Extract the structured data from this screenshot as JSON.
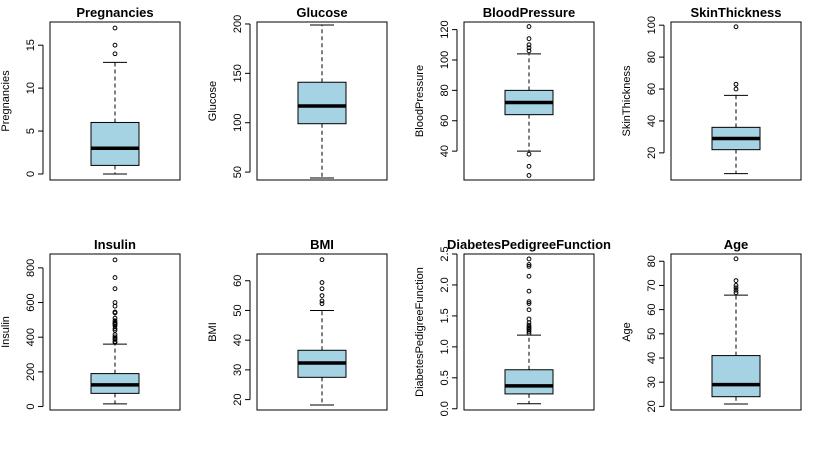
{
  "chart_data": [
    {
      "type": "box",
      "title": "Pregnancies",
      "xlabel": "",
      "ylabel": "Pregnancies",
      "ylim": [
        -0.7,
        17.7
      ],
      "yticks": [
        0,
        5,
        10,
        15
      ],
      "tick_labels": [
        "0",
        "5",
        "10",
        "15"
      ],
      "min": 0,
      "q1": 1,
      "median": 3,
      "q3": 6,
      "max": 13,
      "outliers": [
        14,
        15,
        17
      ]
    },
    {
      "type": "box",
      "title": "Glucose",
      "xlabel": "",
      "ylabel": "Glucose",
      "ylim": [
        42,
        202
      ],
      "yticks": [
        50,
        100,
        150,
        200
      ],
      "tick_labels": [
        "50",
        "100",
        "150",
        "200"
      ],
      "min": 44,
      "q1": 99,
      "median": 117,
      "q3": 141,
      "max": 199,
      "outliers": []
    },
    {
      "type": "box",
      "title": "BloodPressure",
      "xlabel": "",
      "ylabel": "BloodPressure",
      "ylim": [
        21,
        125
      ],
      "yticks": [
        40,
        60,
        80,
        100,
        120
      ],
      "tick_labels": [
        "40",
        "60",
        "80",
        "100",
        "120"
      ],
      "min": 40,
      "q1": 64,
      "median": 72,
      "q3": 80,
      "max": 104,
      "outliers": [
        24,
        30,
        38,
        106,
        108,
        110,
        114,
        122
      ]
    },
    {
      "type": "box",
      "title": "SkinThickness",
      "xlabel": "",
      "ylabel": "SkinThickness",
      "ylim": [
        3,
        102
      ],
      "yticks": [
        20,
        40,
        60,
        80,
        100
      ],
      "tick_labels": [
        "20",
        "40",
        "60",
        "80",
        "100"
      ],
      "min": 7,
      "q1": 22,
      "median": 29,
      "q3": 36,
      "max": 56,
      "outliers": [
        60,
        63,
        99
      ]
    },
    {
      "type": "box",
      "title": "Insulin",
      "xlabel": "",
      "ylabel": "Insulin",
      "ylim": [
        -20,
        880
      ],
      "yticks": [
        0,
        200,
        400,
        600,
        800
      ],
      "tick_labels": [
        "0",
        "200",
        "400",
        "600",
        "800"
      ],
      "min": 15,
      "q1": 76,
      "median": 125,
      "q3": 190,
      "max": 360,
      "outliers": [
        370,
        375,
        387,
        392,
        402,
        415,
        440,
        450,
        465,
        474,
        478,
        480,
        485,
        495,
        510,
        540,
        543,
        545,
        579,
        600,
        680,
        744,
        846
      ]
    },
    {
      "type": "box",
      "title": "BMI",
      "xlabel": "",
      "ylabel": "BMI",
      "ylim": [
        16.5,
        69
      ],
      "yticks": [
        20,
        30,
        40,
        50,
        60
      ],
      "tick_labels": [
        "20",
        "30",
        "40",
        "50",
        "60"
      ],
      "min": 18.2,
      "q1": 27.5,
      "median": 32.3,
      "q3": 36.6,
      "max": 50,
      "outliers": [
        52.3,
        53.2,
        55,
        57.3,
        59.4,
        67.1
      ]
    },
    {
      "type": "box",
      "title": "DiabetesPedigreeFunction",
      "xlabel": "",
      "ylabel": "DiabetesPedigreeFunction",
      "ylim": [
        -0.02,
        2.5
      ],
      "yticks": [
        0,
        0.5,
        1,
        1.5,
        2,
        2.5
      ],
      "tick_labels": [
        "0.0",
        "0.5",
        "1.0",
        "1.5",
        "2.0",
        "2.5"
      ],
      "min": 0.08,
      "q1": 0.24,
      "median": 0.37,
      "q3": 0.63,
      "max": 1.19,
      "outliers": [
        1.22,
        1.25,
        1.28,
        1.3,
        1.32,
        1.35,
        1.39,
        1.45,
        1.6,
        1.7,
        1.73,
        1.9,
        2.14,
        2.3,
        2.33,
        2.42
      ]
    },
    {
      "type": "box",
      "title": "Age",
      "xlabel": "",
      "ylabel": "Age",
      "ylim": [
        18.5,
        83
      ],
      "yticks": [
        20,
        30,
        40,
        50,
        60,
        70,
        80
      ],
      "tick_labels": [
        "20",
        "30",
        "40",
        "50",
        "60",
        "70",
        "80"
      ],
      "min": 21,
      "q1": 24,
      "median": 29,
      "q3": 41,
      "max": 66,
      "outliers": [
        67,
        68,
        69,
        70,
        72,
        81
      ]
    }
  ],
  "colors": {
    "box_fill": "#a6d3e3",
    "stroke": "#000000"
  }
}
